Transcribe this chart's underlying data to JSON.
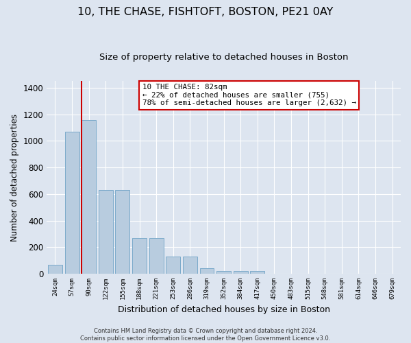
{
  "title": "10, THE CHASE, FISHTOFT, BOSTON, PE21 0AY",
  "subtitle": "Size of property relative to detached houses in Boston",
  "xlabel": "Distribution of detached houses by size in Boston",
  "ylabel": "Number of detached properties",
  "categories": [
    "24sqm",
    "57sqm",
    "90sqm",
    "122sqm",
    "155sqm",
    "188sqm",
    "221sqm",
    "253sqm",
    "286sqm",
    "319sqm",
    "352sqm",
    "384sqm",
    "417sqm",
    "450sqm",
    "483sqm",
    "515sqm",
    "548sqm",
    "581sqm",
    "614sqm",
    "646sqm",
    "679sqm"
  ],
  "values": [
    65,
    1070,
    1155,
    630,
    630,
    270,
    270,
    130,
    130,
    40,
    20,
    20,
    20,
    0,
    0,
    0,
    0,
    0,
    0,
    0,
    0
  ],
  "bar_color": "#b8ccdf",
  "bar_edge_color": "#7baacb",
  "vline_color": "#cc0000",
  "annotation_text": "10 THE CHASE: 82sqm\n← 22% of detached houses are smaller (755)\n78% of semi-detached houses are larger (2,632) →",
  "annotation_box_color": "#ffffff",
  "annotation_box_edge_color": "#cc0000",
  "ylim": [
    0,
    1450
  ],
  "yticks": [
    0,
    200,
    400,
    600,
    800,
    1000,
    1200,
    1400
  ],
  "background_color": "#dde5f0",
  "grid_color": "#ffffff",
  "title_fontsize": 11.5,
  "subtitle_fontsize": 9.5,
  "xlabel_fontsize": 9,
  "ylabel_fontsize": 8.5,
  "footer_text": "Contains HM Land Registry data © Crown copyright and database right 2024.\nContains public sector information licensed under the Open Government Licence v3.0."
}
